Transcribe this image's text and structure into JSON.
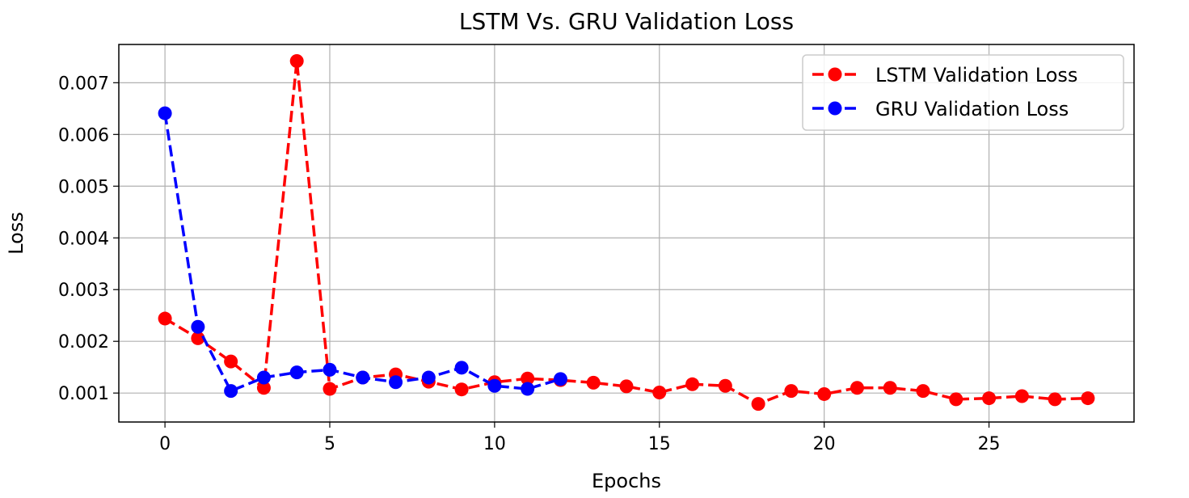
{
  "chart_data": {
    "type": "line",
    "title": "LSTM Vs. GRU Validation Loss",
    "xlabel": "Epochs",
    "ylabel": "Loss",
    "xlim": [
      -1.4,
      29.4
    ],
    "ylim": [
      0.00044,
      0.00774
    ],
    "xticks": [
      0,
      5,
      10,
      15,
      20,
      25
    ],
    "xtick_labels": [
      "0",
      "5",
      "10",
      "15",
      "20",
      "25"
    ],
    "yticks": [
      0.001,
      0.002,
      0.003,
      0.004,
      0.005,
      0.006,
      0.007
    ],
    "ytick_labels": [
      "0.001",
      "0.002",
      "0.003",
      "0.004",
      "0.005",
      "0.006",
      "0.007"
    ],
    "grid": true,
    "legend_position": "top-right",
    "series": [
      {
        "name": "LSTM Validation Loss",
        "color": "#ff0000",
        "line_style": "dashed",
        "marker": "circle",
        "x": [
          0,
          1,
          2,
          3,
          4,
          5,
          6,
          7,
          8,
          9,
          10,
          11,
          12,
          13,
          14,
          15,
          16,
          17,
          18,
          19,
          20,
          21,
          22,
          23,
          24,
          25,
          26,
          27,
          28
        ],
        "values": [
          0.00244,
          0.00206,
          0.00161,
          0.0011,
          0.00742,
          0.00108,
          0.0013,
          0.00136,
          0.00122,
          0.00107,
          0.00121,
          0.00128,
          0.00125,
          0.0012,
          0.00113,
          0.00101,
          0.00117,
          0.00114,
          0.00079,
          0.00104,
          0.00098,
          0.0011,
          0.0011,
          0.00104,
          0.00088,
          0.0009,
          0.00094,
          0.00088,
          0.0009
        ]
      },
      {
        "name": "GRU Validation Loss",
        "color": "#0000ff",
        "line_style": "dashed",
        "marker": "circle",
        "x": [
          0,
          1,
          2,
          3,
          4,
          5,
          6,
          7,
          8,
          9,
          10,
          11,
          12
        ],
        "values": [
          0.00641,
          0.00228,
          0.00104,
          0.0013,
          0.0014,
          0.00145,
          0.0013,
          0.00121,
          0.0013,
          0.00149,
          0.00114,
          0.00108,
          0.00127
        ]
      }
    ]
  }
}
